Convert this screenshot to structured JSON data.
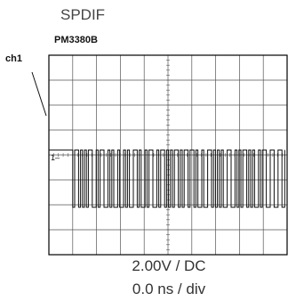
{
  "title": "SPDIF",
  "model": "PM3380B",
  "footer": {
    "volts": "2.00V / DC",
    "time": "0.0 ns / div"
  },
  "chart_data": {
    "type": "line",
    "grid": true,
    "grid_divisions": {
      "x": 10,
      "y": 8
    },
    "channel": {
      "label": "ch1",
      "ground_marker": "1–"
    },
    "xlim": [
      0,
      10
    ],
    "ylim": [
      -4,
      4
    ],
    "x_unit": "div",
    "y_unit": "div",
    "waveform": {
      "idle_level": 0.2,
      "idle_until": 0.85,
      "high": 0.2,
      "low": -2.1,
      "burst_start": 1.0,
      "burst_end": 9.9,
      "description": "biphase-mark digital stream, dense square transitions"
    },
    "colors": {
      "trace": "#111111",
      "grid": "#555555",
      "frame": "#000000"
    }
  }
}
